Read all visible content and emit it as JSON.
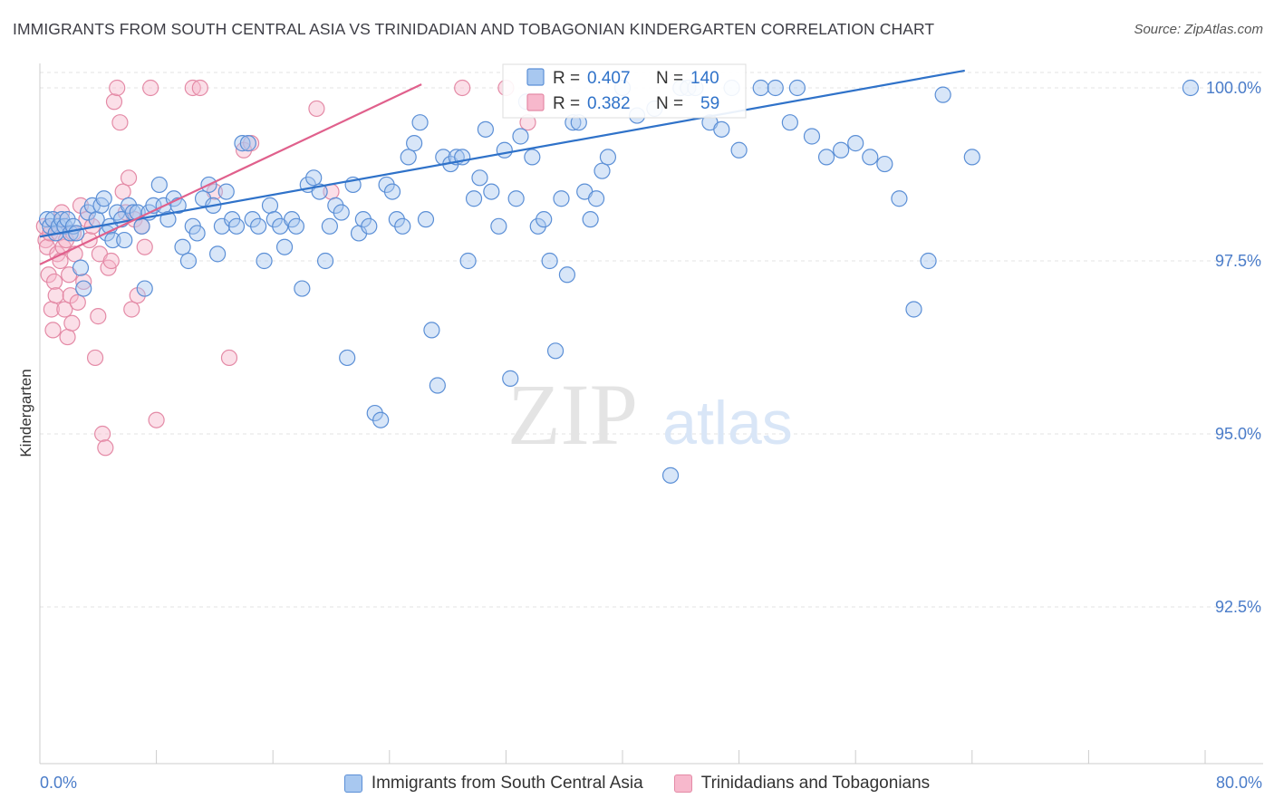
{
  "header": {
    "title": "IMMIGRANTS FROM SOUTH CENTRAL ASIA VS TRINIDADIAN AND TOBAGONIAN KINDERGARTEN CORRELATION CHART",
    "source": "Source: ZipAtlas.com"
  },
  "watermark": {
    "zip": "ZIP",
    "atlas": "atlas"
  },
  "stats": [
    {
      "r_label": "R = ",
      "r_value": "0.407",
      "n_label": "N = ",
      "n_value": "140"
    },
    {
      "r_label": "R = ",
      "r_value": "0.382",
      "n_label": "N = ",
      "n_value": "59"
    }
  ],
  "legend": [
    {
      "label": "Immigrants from South Central Asia"
    },
    {
      "label": "Trinidadians and Tobagonians"
    }
  ],
  "colors": {
    "blue_fill": "#a8c8f0",
    "blue_stroke": "#5b8fd6",
    "blue_line": "#2f72c9",
    "pink_fill": "#f7b8cc",
    "pink_stroke": "#e48aa6",
    "pink_line": "#e0608c",
    "tick_label": "#4a7cc9",
    "grid": "#e3e3e3"
  },
  "chart_data": {
    "type": "scatter",
    "title": "IMMIGRANTS FROM SOUTH CENTRAL ASIA VS TRINIDADIAN AND TOBAGONIAN KINDERGARTEN CORRELATION CHART",
    "xlabel": "",
    "ylabel": "Kindergarten",
    "xlim": [
      0,
      80
    ],
    "ylim": [
      90.0,
      100.3
    ],
    "x_tick_labels": [
      "0.0%",
      "80.0%"
    ],
    "y_ticks": [
      100.0,
      97.5,
      95.0,
      92.5
    ],
    "y_tick_labels": [
      "100.0%",
      "97.5%",
      "95.0%",
      "92.5%"
    ],
    "grid": true,
    "legend_position": "bottom",
    "series": [
      {
        "name": "Immigrants from South Central Asia",
        "r": 0.407,
        "n": 140,
        "trend": {
          "x0": 0,
          "y0": 97.85,
          "x1": 63.5,
          "y1": 100.25
        },
        "points": [
          [
            0.5,
            98.1
          ],
          [
            0.7,
            98.0
          ],
          [
            0.9,
            98.1
          ],
          [
            1.1,
            97.9
          ],
          [
            1.3,
            98.0
          ],
          [
            1.5,
            98.1
          ],
          [
            1.7,
            98.0
          ],
          [
            1.9,
            98.1
          ],
          [
            2.1,
            97.9
          ],
          [
            2.3,
            98.0
          ],
          [
            2.5,
            97.9
          ],
          [
            2.8,
            97.4
          ],
          [
            3.0,
            97.1
          ],
          [
            3.3,
            98.2
          ],
          [
            3.6,
            98.3
          ],
          [
            3.9,
            98.1
          ],
          [
            4.2,
            98.3
          ],
          [
            4.4,
            98.4
          ],
          [
            4.6,
            97.9
          ],
          [
            4.8,
            98.0
          ],
          [
            5.0,
            97.8
          ],
          [
            5.3,
            98.2
          ],
          [
            5.6,
            98.1
          ],
          [
            5.8,
            97.8
          ],
          [
            6.1,
            98.3
          ],
          [
            6.4,
            98.2
          ],
          [
            6.7,
            98.2
          ],
          [
            7.0,
            98.0
          ],
          [
            7.2,
            97.1
          ],
          [
            7.5,
            98.2
          ],
          [
            7.8,
            98.3
          ],
          [
            8.2,
            98.6
          ],
          [
            8.5,
            98.3
          ],
          [
            8.8,
            98.1
          ],
          [
            9.2,
            98.4
          ],
          [
            9.5,
            98.3
          ],
          [
            9.8,
            97.7
          ],
          [
            10.2,
            97.5
          ],
          [
            10.5,
            98.0
          ],
          [
            10.8,
            97.9
          ],
          [
            11.2,
            98.4
          ],
          [
            11.6,
            98.6
          ],
          [
            11.9,
            98.3
          ],
          [
            12.2,
            97.6
          ],
          [
            12.5,
            98.0
          ],
          [
            12.8,
            98.5
          ],
          [
            13.2,
            98.1
          ],
          [
            13.5,
            98.0
          ],
          [
            13.9,
            99.2
          ],
          [
            14.3,
            99.2
          ],
          [
            14.6,
            98.1
          ],
          [
            15.0,
            98.0
          ],
          [
            15.4,
            97.5
          ],
          [
            15.8,
            98.3
          ],
          [
            16.1,
            98.1
          ],
          [
            16.5,
            98.0
          ],
          [
            16.8,
            97.7
          ],
          [
            17.3,
            98.1
          ],
          [
            17.6,
            98.0
          ],
          [
            18.0,
            97.1
          ],
          [
            18.4,
            98.6
          ],
          [
            18.8,
            98.7
          ],
          [
            19.2,
            98.5
          ],
          [
            19.6,
            97.5
          ],
          [
            19.9,
            98.0
          ],
          [
            20.3,
            98.3
          ],
          [
            20.7,
            98.2
          ],
          [
            21.1,
            96.1
          ],
          [
            21.5,
            98.6
          ],
          [
            21.9,
            97.9
          ],
          [
            22.2,
            98.1
          ],
          [
            22.6,
            98.0
          ],
          [
            23.0,
            95.3
          ],
          [
            23.4,
            95.2
          ],
          [
            23.8,
            98.6
          ],
          [
            24.2,
            98.5
          ],
          [
            24.5,
            98.1
          ],
          [
            24.9,
            98.0
          ],
          [
            25.3,
            99.0
          ],
          [
            25.7,
            99.2
          ],
          [
            26.1,
            99.5
          ],
          [
            26.5,
            98.1
          ],
          [
            26.9,
            96.5
          ],
          [
            27.3,
            95.7
          ],
          [
            27.7,
            99.0
          ],
          [
            28.2,
            98.9
          ],
          [
            28.6,
            99.0
          ],
          [
            29.0,
            99.0
          ],
          [
            29.4,
            97.5
          ],
          [
            29.8,
            98.4
          ],
          [
            30.2,
            98.7
          ],
          [
            30.6,
            99.4
          ],
          [
            31.0,
            98.5
          ],
          [
            31.5,
            98.0
          ],
          [
            31.9,
            99.1
          ],
          [
            32.3,
            95.8
          ],
          [
            32.7,
            98.4
          ],
          [
            33.0,
            99.3
          ],
          [
            33.4,
            99.8
          ],
          [
            33.8,
            99.0
          ],
          [
            34.2,
            98.0
          ],
          [
            34.6,
            98.1
          ],
          [
            35.0,
            97.5
          ],
          [
            35.4,
            96.2
          ],
          [
            35.8,
            98.4
          ],
          [
            36.2,
            97.3
          ],
          [
            36.6,
            99.5
          ],
          [
            37.0,
            99.5
          ],
          [
            37.4,
            98.5
          ],
          [
            37.8,
            98.1
          ],
          [
            38.2,
            98.4
          ],
          [
            38.6,
            98.8
          ],
          [
            39.0,
            99.0
          ],
          [
            40.0,
            100.0
          ],
          [
            41.0,
            99.6
          ],
          [
            42.2,
            99.7
          ],
          [
            43.3,
            94.4
          ],
          [
            44.0,
            100.0
          ],
          [
            44.5,
            100.0
          ],
          [
            45.0,
            100.0
          ],
          [
            46.0,
            99.5
          ],
          [
            46.8,
            99.4
          ],
          [
            47.5,
            100.0
          ],
          [
            48.0,
            99.1
          ],
          [
            49.5,
            100.0
          ],
          [
            50.5,
            100.0
          ],
          [
            51.5,
            99.5
          ],
          [
            52.0,
            100.0
          ],
          [
            53.0,
            99.3
          ],
          [
            54.0,
            99.0
          ],
          [
            55.0,
            99.1
          ],
          [
            56.0,
            99.2
          ],
          [
            57.0,
            99.0
          ],
          [
            58.0,
            98.9
          ],
          [
            59.0,
            98.4
          ],
          [
            60.0,
            96.8
          ],
          [
            61.0,
            97.5
          ],
          [
            62.0,
            99.9
          ],
          [
            64.0,
            99.0
          ],
          [
            79.0,
            100.0
          ]
        ]
      },
      {
        "name": "Trinidadians and Tobagonians",
        "r": 0.382,
        "n": 59,
        "trend": {
          "x0": 0,
          "y0": 97.45,
          "x1": 26.2,
          "y1": 100.05
        },
        "points": [
          [
            0.3,
            98.0
          ],
          [
            0.4,
            97.8
          ],
          [
            0.5,
            97.7
          ],
          [
            0.6,
            97.3
          ],
          [
            0.7,
            97.9
          ],
          [
            0.8,
            96.8
          ],
          [
            0.9,
            96.5
          ],
          [
            1.0,
            97.2
          ],
          [
            1.1,
            97.0
          ],
          [
            1.2,
            97.6
          ],
          [
            1.3,
            97.9
          ],
          [
            1.4,
            97.5
          ],
          [
            1.5,
            98.2
          ],
          [
            1.6,
            97.7
          ],
          [
            1.7,
            96.8
          ],
          [
            1.8,
            97.8
          ],
          [
            1.9,
            96.4
          ],
          [
            2.0,
            97.3
          ],
          [
            2.1,
            97.0
          ],
          [
            2.2,
            96.6
          ],
          [
            2.3,
            97.9
          ],
          [
            2.4,
            97.6
          ],
          [
            2.6,
            96.9
          ],
          [
            2.8,
            98.3
          ],
          [
            3.0,
            97.2
          ],
          [
            3.2,
            98.1
          ],
          [
            3.4,
            97.8
          ],
          [
            3.6,
            98.0
          ],
          [
            3.8,
            96.1
          ],
          [
            4.0,
            96.7
          ],
          [
            4.1,
            97.6
          ],
          [
            4.3,
            95.0
          ],
          [
            4.5,
            94.8
          ],
          [
            4.7,
            97.4
          ],
          [
            4.9,
            97.5
          ],
          [
            5.1,
            99.8
          ],
          [
            5.3,
            100.0
          ],
          [
            5.5,
            99.5
          ],
          [
            5.7,
            98.5
          ],
          [
            5.9,
            98.2
          ],
          [
            6.1,
            98.7
          ],
          [
            6.3,
            96.8
          ],
          [
            6.5,
            98.1
          ],
          [
            6.7,
            97.0
          ],
          [
            7.0,
            98.0
          ],
          [
            7.2,
            97.7
          ],
          [
            7.6,
            100.0
          ],
          [
            8.0,
            95.2
          ],
          [
            10.5,
            100.0
          ],
          [
            11.0,
            100.0
          ],
          [
            12.0,
            98.5
          ],
          [
            13.0,
            96.1
          ],
          [
            14.0,
            99.1
          ],
          [
            14.5,
            99.2
          ],
          [
            19.0,
            99.7
          ],
          [
            20.0,
            98.5
          ],
          [
            29.0,
            100.0
          ],
          [
            32.0,
            100.0
          ],
          [
            33.5,
            99.5
          ]
        ]
      }
    ]
  }
}
